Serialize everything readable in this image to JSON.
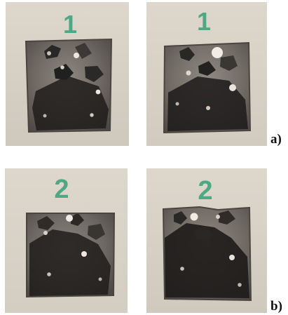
{
  "figure": {
    "panels": [
      {
        "label": "a)",
        "photos": [
          {
            "marker": "1"
          },
          {
            "marker": "1"
          }
        ]
      },
      {
        "label": "b)",
        "photos": [
          {
            "marker": "2"
          },
          {
            "marker": "2"
          }
        ]
      }
    ],
    "colors": {
      "background": "#ffffff",
      "photo_background": "#d7d1c6",
      "specimen_gray": "#6d6964",
      "specimen_dark": "#2a2826",
      "marker_green": "#2f9f78"
    }
  }
}
